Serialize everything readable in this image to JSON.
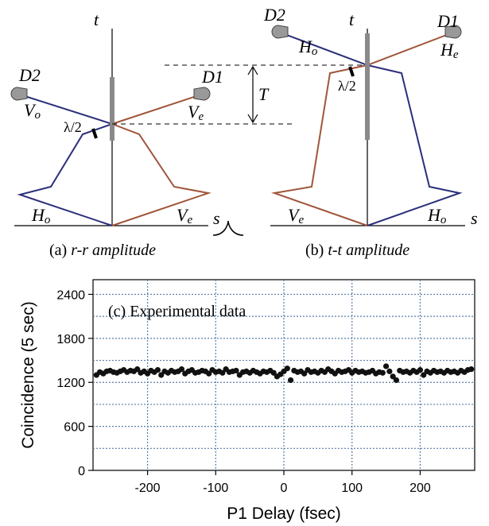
{
  "diagram_a": {
    "axis_t": "t",
    "axis_s": "s",
    "detector_1": "D1",
    "detector_2": "D2",
    "label_vo": "V",
    "label_vo_sub": "o",
    "label_ve_upper": "V",
    "label_ve_upper_sub": "e",
    "label_ho": "H",
    "label_ho_sub": "o",
    "label_ve_lower": "V",
    "label_ve_lower_sub": "e",
    "waveplate": "λ/2",
    "caption_prefix": "(a) ",
    "caption_italic": "r-r amplitude"
  },
  "diagram_b": {
    "axis_t": "t",
    "axis_s": "s",
    "detector_1": "D1",
    "detector_2": "D2",
    "label_ho_upper": "H",
    "label_ho_upper_sub": "o",
    "label_he": "H",
    "label_he_sub": "e",
    "label_ve": "V",
    "label_ve_sub": "e",
    "label_ho_lower": "H",
    "label_ho_lower_sub": "o",
    "waveplate": "λ/2",
    "delay": "T",
    "caption_prefix": "(b) ",
    "caption_italic": "t-t amplitude"
  },
  "colors": {
    "blue_path": "#2b2f7a",
    "red_path": "#a0553a",
    "beamsplitter": "#8a8a8a",
    "data_point": "#111111",
    "grid": "#5a7fa8"
  },
  "chart_data": {
    "type": "scatter",
    "title": "(c) Experimental data",
    "xlabel": "P1 Delay (fsec)",
    "ylabel": "Coincidence (5 sec)",
    "xlim": [
      -280,
      280
    ],
    "ylim": [
      0,
      2600
    ],
    "xticks": [
      -200,
      -100,
      0,
      100,
      200
    ],
    "xtick_labels": [
      "-200",
      "-100",
      "0",
      "100",
      "200"
    ],
    "yticks": [
      0,
      600,
      1200,
      1800,
      2400
    ],
    "ytick_labels": [
      "0",
      "600",
      "1200",
      "1800",
      "2400"
    ],
    "grid": true,
    "series": [
      {
        "x": [
          -275,
          -270,
          -265,
          -260,
          -255,
          -250,
          -245,
          -240,
          -235,
          -230,
          -225,
          -220,
          -215,
          -210,
          -205,
          -200,
          -195,
          -190,
          -185,
          -180,
          -175,
          -170,
          -165,
          -160,
          -155,
          -150,
          -145,
          -140,
          -135,
          -130,
          -125,
          -120,
          -115,
          -110,
          -105,
          -100,
          -95,
          -90,
          -85,
          -80,
          -75,
          -70,
          -65,
          -60,
          -55,
          -50,
          -45,
          -40,
          -35,
          -30,
          -25,
          -20,
          -15,
          -10,
          -5,
          0,
          5,
          10,
          15,
          20,
          25,
          30,
          35,
          40,
          45,
          50,
          55,
          60,
          65,
          70,
          75,
          80,
          85,
          90,
          95,
          100,
          105,
          110,
          115,
          120,
          125,
          130,
          135,
          140,
          145,
          150,
          155,
          160,
          165,
          170,
          175,
          180,
          185,
          190,
          195,
          200,
          205,
          210,
          215,
          220,
          225,
          230,
          235,
          240,
          245,
          250,
          255,
          260,
          265,
          270,
          275
        ],
        "y": [
          1300,
          1340,
          1320,
          1350,
          1360,
          1340,
          1330,
          1350,
          1370,
          1340,
          1360,
          1350,
          1380,
          1330,
          1350,
          1320,
          1360,
          1340,
          1370,
          1300,
          1350,
          1330,
          1360,
          1340,
          1350,
          1380,
          1320,
          1350,
          1370,
          1330,
          1340,
          1360,
          1350,
          1320,
          1370,
          1340,
          1350,
          1330,
          1380,
          1340,
          1350,
          1360,
          1300,
          1340,
          1350,
          1330,
          1360,
          1340,
          1320,
          1350,
          1340,
          1360,
          1330,
          1280,
          1310,
          1350,
          1390,
          1230,
          1360,
          1340,
          1350,
          1320,
          1370,
          1340,
          1350,
          1330,
          1360,
          1340,
          1380,
          1350,
          1320,
          1360,
          1340,
          1350,
          1370,
          1330,
          1360,
          1340,
          1350,
          1330,
          1340,
          1360,
          1320,
          1340,
          1330,
          1420,
          1350,
          1280,
          1230,
          1360,
          1340,
          1350,
          1330,
          1360,
          1340,
          1370,
          1300,
          1350,
          1330,
          1360,
          1340,
          1350,
          1330,
          1360,
          1340,
          1350,
          1330,
          1360,
          1340,
          1370,
          1380
        ]
      }
    ]
  }
}
